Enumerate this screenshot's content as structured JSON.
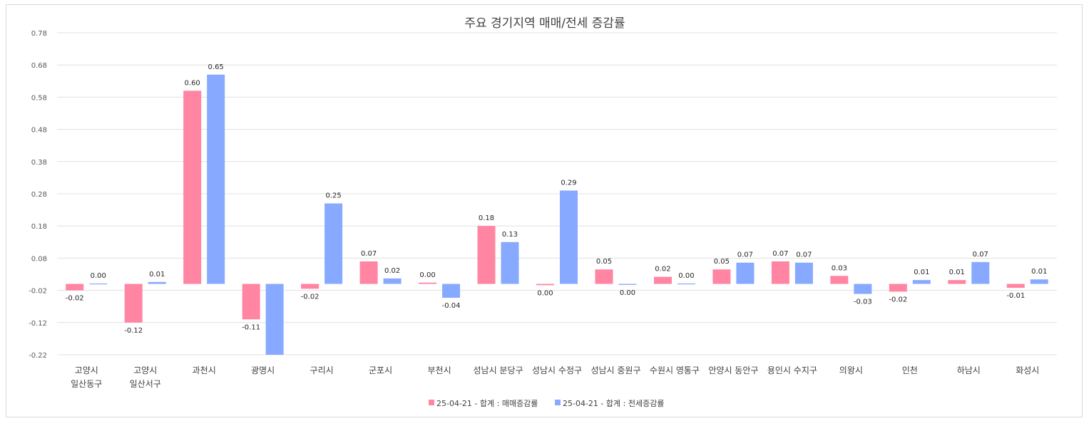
{
  "chart_data": {
    "type": "bar",
    "title": "주요 경기지역 매매/전세 증감률",
    "xlabel": "",
    "ylabel": "",
    "ylim": [
      -0.22,
      0.78
    ],
    "yticks": [
      "0.78",
      "0.68",
      "0.58",
      "0.48",
      "0.38",
      "0.28",
      "0.18",
      "0.08",
      "-0.02",
      "-0.12",
      "-0.22"
    ],
    "categories": [
      [
        "고양시",
        "일산동구"
      ],
      [
        "고양시",
        "일산서구"
      ],
      [
        "과천시"
      ],
      [
        "광명시"
      ],
      [
        "구리시"
      ],
      [
        "군포시"
      ],
      [
        "부천시"
      ],
      [
        "성남시 분당구"
      ],
      [
        "성남시 수정구"
      ],
      [
        "성남시 중원구"
      ],
      [
        "수원시 영통구"
      ],
      [
        "안양시 동안구"
      ],
      [
        "용인시 수지구"
      ],
      [
        "의왕시"
      ],
      [
        "인천"
      ],
      [
        "하남시"
      ],
      [
        "화성시"
      ]
    ],
    "series": [
      {
        "name": "25-04-21 - 합계 : 매매증감률",
        "color": "#ff85a2",
        "values": [
          -0.02,
          -0.12,
          0.6,
          -0.11,
          -0.015,
          0.07,
          0.004,
          0.18,
          -0.004,
          0.045,
          0.022,
          0.045,
          0.07,
          0.025,
          -0.024,
          0.012,
          -0.012
        ],
        "labels": [
          "-0.02",
          "-0.12",
          "0.60",
          "-0.11",
          "-0.02",
          "0.07",
          "0.00",
          "0.18",
          "0.00",
          "0.05",
          "0.02",
          "0.05",
          "0.07",
          "0.03",
          "-0.02",
          "0.01",
          "-0.01"
        ]
      },
      {
        "name": "25-04-21 - 합계 : 전세증감률",
        "color": "#87a9ff",
        "values": [
          0.0,
          0.006,
          0.65,
          -0.23,
          0.25,
          0.017,
          -0.043,
          0.13,
          0.29,
          -0.003,
          0.002,
          0.066,
          0.066,
          -0.031,
          0.012,
          0.068,
          0.014
        ],
        "labels": [
          "0.00",
          "0.01",
          "0.65",
          null,
          "0.25",
          "0.02",
          "-0.04",
          "0.13",
          "0.29",
          "0.00",
          "0.00",
          "0.07",
          "0.07",
          "-0.03",
          "0.01",
          "0.07",
          "0.01"
        ]
      }
    ],
    "legend_position": "bottom-center",
    "grid": true
  }
}
